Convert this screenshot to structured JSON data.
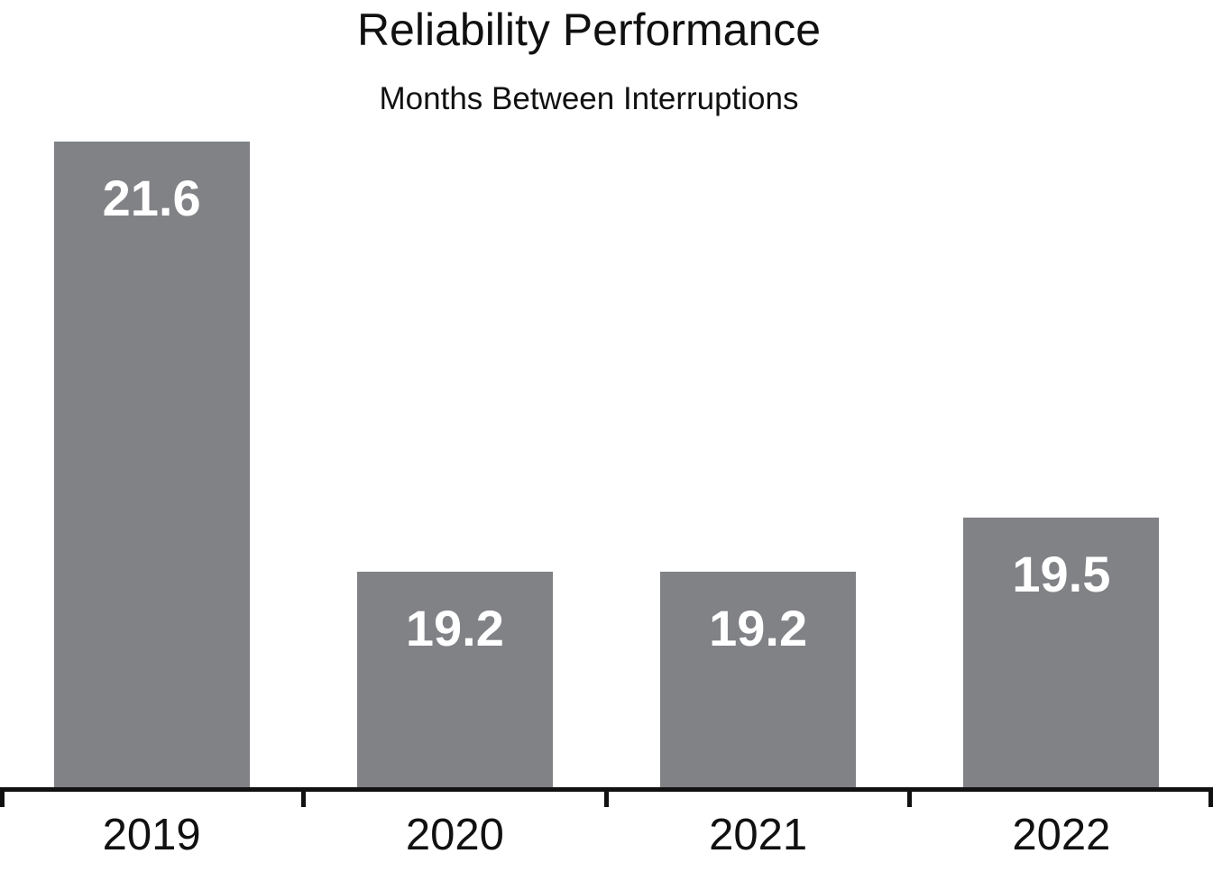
{
  "chart_data": {
    "type": "bar",
    "title": "Reliability Performance",
    "subtitle": "Months Between Interruptions",
    "categories": [
      "2019",
      "2020",
      "2021",
      "2022"
    ],
    "values": [
      21.6,
      19.2,
      19.2,
      19.5
    ],
    "value_labels": [
      "21.6",
      "19.2",
      "19.2",
      "19.5"
    ],
    "xlabel": "",
    "ylabel": "",
    "ylim": [
      18.0,
      21.65
    ],
    "grid": false,
    "legend": false,
    "bar_color": "#808285",
    "value_label_color": "#ffffff",
    "text_color": "#111111",
    "axis_color": "#111111",
    "background_color": "#ffffff"
  }
}
